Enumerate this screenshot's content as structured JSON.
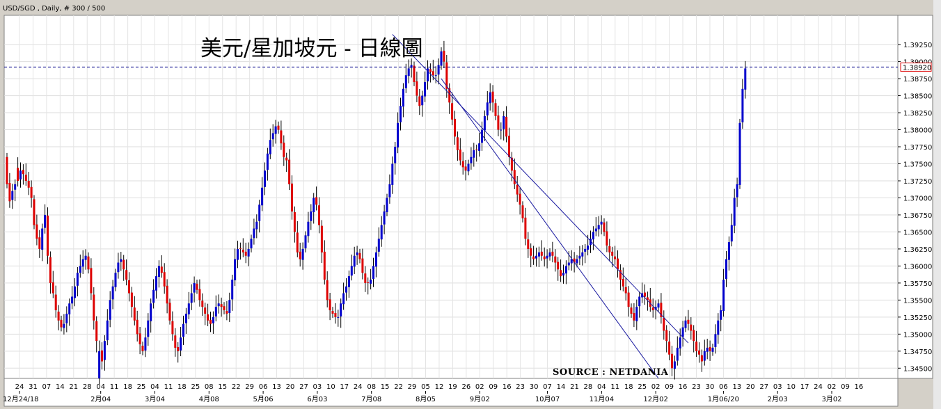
{
  "window": {
    "header": "USD/SGD , Daily, # 300 / 500"
  },
  "chart_data": {
    "type": "candlestick",
    "title": "美元/星加坡元 - 日線圖",
    "source_note": "SOURCE : NETDANIA",
    "ylim": [
      1.3435,
      1.3968
    ],
    "y_ticks": [
      "1.39250",
      "1.39000",
      "1.38750",
      "1.38500",
      "1.38250",
      "1.38000",
      "1.37750",
      "1.37500",
      "1.37250",
      "1.37000",
      "1.36750",
      "1.36500",
      "1.36250",
      "1.36000",
      "1.35750",
      "1.35500",
      "1.35250",
      "1.35000",
      "1.34750",
      "1.34500"
    ],
    "current_price": "1.38920",
    "current_price_value": 1.3892,
    "grid": true,
    "up_color": "#0000cc",
    "down_color": "#dd0000",
    "day_labels": [
      "24",
      "31",
      "07",
      "14",
      "21",
      "28",
      "04",
      "11",
      "18",
      "25",
      "04",
      "11",
      "18",
      "25",
      "08",
      "15",
      "22",
      "29",
      "06",
      "13",
      "20",
      "27",
      "03",
      "10",
      "17",
      "24",
      "08",
      "15",
      "22",
      "29",
      "05",
      "12",
      "19",
      "26",
      "02",
      "09",
      "16",
      "23",
      "30",
      "07",
      "14",
      "21",
      "28",
      "04",
      "11",
      "18",
      "25",
      "02",
      "09",
      "16",
      "23",
      "30",
      "06",
      "13",
      "20",
      "27",
      "03",
      "10",
      "17",
      "24",
      "02",
      "09",
      "16"
    ],
    "month_labels": [
      "12月24/18",
      "2月04",
      "3月04",
      "4月08",
      "5月06",
      "6月03",
      "7月08",
      "8月05",
      "9月02",
      "10月07",
      "11月04",
      "12月02",
      "1月06/20",
      "2月03",
      "3月02"
    ],
    "trendlines": [
      {
        "name": "upper-trendline",
        "from": {
          "bar": 142,
          "price": 1.394
        },
        "to": {
          "bar": 251,
          "price": 1.3487
        }
      },
      {
        "name": "lower-trendline",
        "from": {
          "bar": 160,
          "price": 1.3875
        },
        "to": {
          "bar": 240,
          "price": 1.3435
        }
      }
    ],
    "closes": [
      1.372,
      1.3695,
      1.371,
      1.372,
      1.3725,
      1.374,
      1.3735,
      1.3725,
      1.3715,
      1.37,
      1.366,
      1.364,
      1.3625,
      1.3655,
      1.3675,
      1.3615,
      1.3575,
      1.356,
      1.3535,
      1.352,
      1.351,
      1.3515,
      1.353,
      1.3545,
      1.3555,
      1.357,
      1.359,
      1.36,
      1.361,
      1.3615,
      1.3595,
      1.356,
      1.352,
      1.349,
      1.3475,
      1.346,
      1.349,
      1.352,
      1.355,
      1.357,
      1.359,
      1.3605,
      1.361,
      1.3595,
      1.358,
      1.356,
      1.354,
      1.352,
      1.35,
      1.3485,
      1.3475,
      1.3495,
      1.352,
      1.3545,
      1.3565,
      1.3585,
      1.36,
      1.359,
      1.357,
      1.3545,
      1.352,
      1.35,
      1.348,
      1.3475,
      1.3495,
      1.3515,
      1.353,
      1.3545,
      1.356,
      1.3575,
      1.3565,
      1.355,
      1.354,
      1.353,
      1.352,
      1.3515,
      1.3525,
      1.354,
      1.3545,
      1.354,
      1.3535,
      1.353,
      1.355,
      1.358,
      1.361,
      1.3625,
      1.3625,
      1.362,
      1.3615,
      1.3625,
      1.364,
      1.3655,
      1.3665,
      1.369,
      1.3715,
      1.374,
      1.3765,
      1.3785,
      1.3795,
      1.3805,
      1.38,
      1.378,
      1.376,
      1.3755,
      1.372,
      1.368,
      1.365,
      1.362,
      1.361,
      1.3625,
      1.3645,
      1.3665,
      1.368,
      1.37,
      1.369,
      1.366,
      1.362,
      1.358,
      1.355,
      1.3535,
      1.353,
      1.3525,
      1.3525,
      1.3545,
      1.356,
      1.357,
      1.3585,
      1.36,
      1.3615,
      1.362,
      1.361,
      1.359,
      1.3575,
      1.3575,
      1.358,
      1.36,
      1.362,
      1.364,
      1.366,
      1.368,
      1.37,
      1.372,
      1.375,
      1.3775,
      1.381,
      1.3835,
      1.386,
      1.388,
      1.389,
      1.3895,
      1.387,
      1.385,
      1.3835,
      1.385,
      1.387,
      1.389,
      1.3885,
      1.388,
      1.388,
      1.3895,
      1.3915,
      1.39,
      1.386,
      1.384,
      1.3815,
      1.379,
      1.377,
      1.3755,
      1.3745,
      1.374,
      1.375,
      1.376,
      1.377,
      1.377,
      1.378,
      1.38,
      1.382,
      1.384,
      1.3855,
      1.384,
      1.382,
      1.38,
      1.38,
      1.382,
      1.379,
      1.376,
      1.374,
      1.372,
      1.3705,
      1.369,
      1.367,
      1.364,
      1.3625,
      1.3615,
      1.361,
      1.3615,
      1.362,
      1.3615,
      1.361,
      1.3615,
      1.362,
      1.3615,
      1.3605,
      1.3595,
      1.3585,
      1.359,
      1.36,
      1.3605,
      1.361,
      1.3605,
      1.361,
      1.3615,
      1.362,
      1.3625,
      1.363,
      1.364,
      1.365,
      1.3655,
      1.366,
      1.3665,
      1.365,
      1.363,
      1.362,
      1.3615,
      1.361,
      1.3595,
      1.358,
      1.357,
      1.356,
      1.354,
      1.353,
      1.352,
      1.354,
      1.3555,
      1.356,
      1.3555,
      1.355,
      1.354,
      1.3535,
      1.354,
      1.3545,
      1.3525,
      1.3505,
      1.349,
      1.347,
      1.345,
      1.346,
      1.348,
      1.3495,
      1.351,
      1.352,
      1.3515,
      1.3505,
      1.349,
      1.3475,
      1.347,
      1.346,
      1.3475,
      1.348,
      1.3475,
      1.348,
      1.35,
      1.352,
      1.3535,
      1.358,
      1.361,
      1.3635,
      1.366,
      1.37,
      1.372,
      1.381,
      1.386,
      1.389
    ],
    "opens": [
      1.376,
      1.3722,
      1.3697,
      1.3712,
      1.3744,
      1.3727,
      1.3741,
      1.3734,
      1.3725,
      1.3716,
      1.3698,
      1.3661,
      1.3642,
      1.3624,
      1.3656,
      1.3674,
      1.3613,
      1.3576,
      1.3558,
      1.3533,
      1.3521,
      1.3509,
      1.3516,
      1.3529,
      1.3545,
      1.3553,
      1.3571,
      1.359,
      1.3599,
      1.3609,
      1.3614,
      1.3597,
      1.3558,
      1.3519,
      1.3435,
      1.3476,
      1.3462,
      1.3491,
      1.3521,
      1.3551,
      1.3569,
      1.3591,
      1.3606,
      1.3609,
      1.3594,
      1.3579,
      1.3561,
      1.3539,
      1.3521,
      1.3501,
      1.3483,
      1.3476,
      1.3496,
      1.3519,
      1.3546,
      1.3564,
      1.3584,
      1.3599,
      1.3591,
      1.3571,
      1.3546,
      1.3519,
      1.3498,
      1.3481,
      1.3476,
      1.3496,
      1.3516,
      1.3529,
      1.3546,
      1.3561,
      1.3574,
      1.3566,
      1.3549,
      1.3539,
      1.3529,
      1.3521,
      1.3516,
      1.3526,
      1.3541,
      1.3544,
      1.3541,
      1.3534,
      1.3531,
      1.3551,
      1.3579,
      1.3609,
      1.3626,
      1.3624,
      1.3621,
      1.3614,
      1.3626,
      1.3641,
      1.3654,
      1.3666,
      1.3689,
      1.3716,
      1.3741,
      1.3764,
      1.3786,
      1.3794,
      1.3806,
      1.3799,
      1.3781,
      1.3759,
      1.3756,
      1.3721,
      1.3679,
      1.3649,
      1.3621,
      1.3609,
      1.3626,
      1.3644,
      1.3666,
      1.3679,
      1.3701,
      1.3689,
      1.3659,
      1.3621,
      1.3579,
      1.3551,
      1.3534,
      1.3531,
      1.3524,
      1.3526,
      1.3544,
      1.3561,
      1.3569,
      1.3586,
      1.3599,
      1.3616,
      1.3619,
      1.3611,
      1.3589,
      1.3576,
      1.3574,
      1.3581,
      1.3599,
      1.3621,
      1.3639,
      1.3661,
      1.3679,
      1.3701,
      1.3719,
      1.3751,
      1.3774,
      1.3811,
      1.3834,
      1.3861,
      1.3879,
      1.3891,
      1.3894,
      1.3871,
      1.3849,
      1.3836,
      1.3849,
      1.3871,
      1.3889,
      1.3886,
      1.3879,
      1.3881,
      1.3894,
      1.3916,
      1.3899,
      1.3861,
      1.3839,
      1.3816,
      1.3789,
      1.3771,
      1.3754,
      1.3746,
      1.3739,
      1.3751,
      1.3759,
      1.3771,
      1.3769,
      1.3781,
      1.3799,
      1.3821,
      1.3839,
      1.3856,
      1.3839,
      1.3821,
      1.3799,
      1.3801,
      1.3819,
      1.3791,
      1.3759,
      1.3741,
      1.3719,
      1.3706,
      1.3689,
      1.3671,
      1.3639,
      1.3626,
      1.3614,
      1.3611,
      1.3614,
      1.3621,
      1.3614,
      1.3611,
      1.3614,
      1.3621,
      1.3614,
      1.3606,
      1.3594,
      1.3586,
      1.3589,
      1.3601,
      1.3604,
      1.3611,
      1.3604,
      1.3611,
      1.3614,
      1.3621,
      1.3624,
      1.3631,
      1.3639,
      1.3651,
      1.3654,
      1.3661,
      1.3664,
      1.3651,
      1.3629,
      1.3621,
      1.3614,
      1.3611,
      1.3594,
      1.3581,
      1.3569,
      1.3561,
      1.3539,
      1.3531,
      1.3519,
      1.3541,
      1.3554,
      1.3561,
      1.3554,
      1.3551,
      1.3539,
      1.3536,
      1.3539,
      1.3546,
      1.3524,
      1.3506,
      1.3489,
      1.3471,
      1.3449,
      1.3461,
      1.3479,
      1.3496,
      1.3509,
      1.3521,
      1.3514,
      1.3506,
      1.3489,
      1.3476,
      1.3469,
      1.3461,
      1.3474,
      1.3481,
      1.3474,
      1.3481,
      1.3499,
      1.3521,
      1.3534,
      1.3581,
      1.3609,
      1.3636,
      1.3659,
      1.3701,
      1.3719,
      1.3811,
      1.3859
    ]
  }
}
